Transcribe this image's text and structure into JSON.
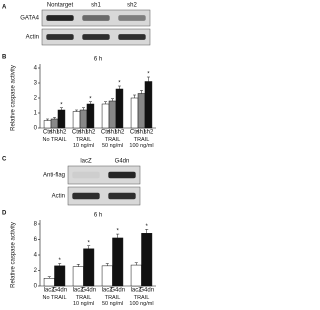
{
  "panel_labels": [
    "A",
    "B",
    "C",
    "D"
  ],
  "blots": [
    {
      "columns": [
        "Nontarget",
        "sh1",
        "sh2"
      ],
      "rows": [
        "GATA4",
        "Actin"
      ]
    },
    {
      "columns": [
        "lacZ",
        "G4dn"
      ],
      "rows": [
        "Anti-flag",
        "Actin"
      ]
    }
  ],
  "chart_data": [
    {
      "type": "bar",
      "title": "6 h",
      "y_label": "Relative caspase activity",
      "categories": [
        "No TRAIL",
        "TRAIL\n10 ng/ml",
        "TRAIL\n50 ng/ml",
        "TRAIL\n100 ng/ml"
      ],
      "series": [
        {
          "name": "Ctrl",
          "color": "#ffffff",
          "values": [
            0.5,
            1.1,
            1.6,
            2.0
          ],
          "errors": [
            0.1,
            0.1,
            0.15,
            0.2
          ],
          "asterisks": [
            null,
            null,
            null,
            null
          ]
        },
        {
          "name": "sh1",
          "color": "#888888",
          "values": [
            0.6,
            1.2,
            1.8,
            2.3
          ],
          "errors": [
            0.1,
            0.15,
            0.15,
            0.2
          ],
          "asterisks": [
            null,
            null,
            null,
            null
          ]
        },
        {
          "name": "sh2",
          "color": "#111111",
          "values": [
            1.2,
            1.6,
            2.6,
            3.1
          ],
          "errors": [
            0.15,
            0.15,
            0.2,
            0.3
          ],
          "asterisks": [
            "*",
            "*",
            "*",
            "*"
          ]
        }
      ],
      "ylim": [
        0,
        4
      ],
      "yticks": [
        0,
        1,
        2,
        3,
        4
      ]
    },
    {
      "type": "bar",
      "title": "6 h",
      "y_label": "Relative caspase activity",
      "categories": [
        "No TRAIL",
        "TRAIL\n10 ng/ml",
        "TRAIL\n50 ng/ml",
        "TRAIL\n100 ng/ml"
      ],
      "series": [
        {
          "name": "lacZ",
          "color": "#ffffff",
          "values": [
            1.0,
            2.5,
            2.6,
            2.7
          ],
          "errors": [
            0.2,
            0.3,
            0.3,
            0.3
          ],
          "asterisks": [
            null,
            null,
            null,
            null
          ]
        },
        {
          "name": "G4dn",
          "color": "#111111",
          "values": [
            2.6,
            4.8,
            6.2,
            6.8
          ],
          "errors": [
            0.3,
            0.4,
            0.5,
            0.5
          ],
          "asterisks": [
            "*",
            "*",
            "*",
            "*"
          ]
        }
      ],
      "ylim": [
        0,
        8
      ],
      "yticks": [
        0,
        2,
        4,
        6,
        8
      ]
    }
  ]
}
